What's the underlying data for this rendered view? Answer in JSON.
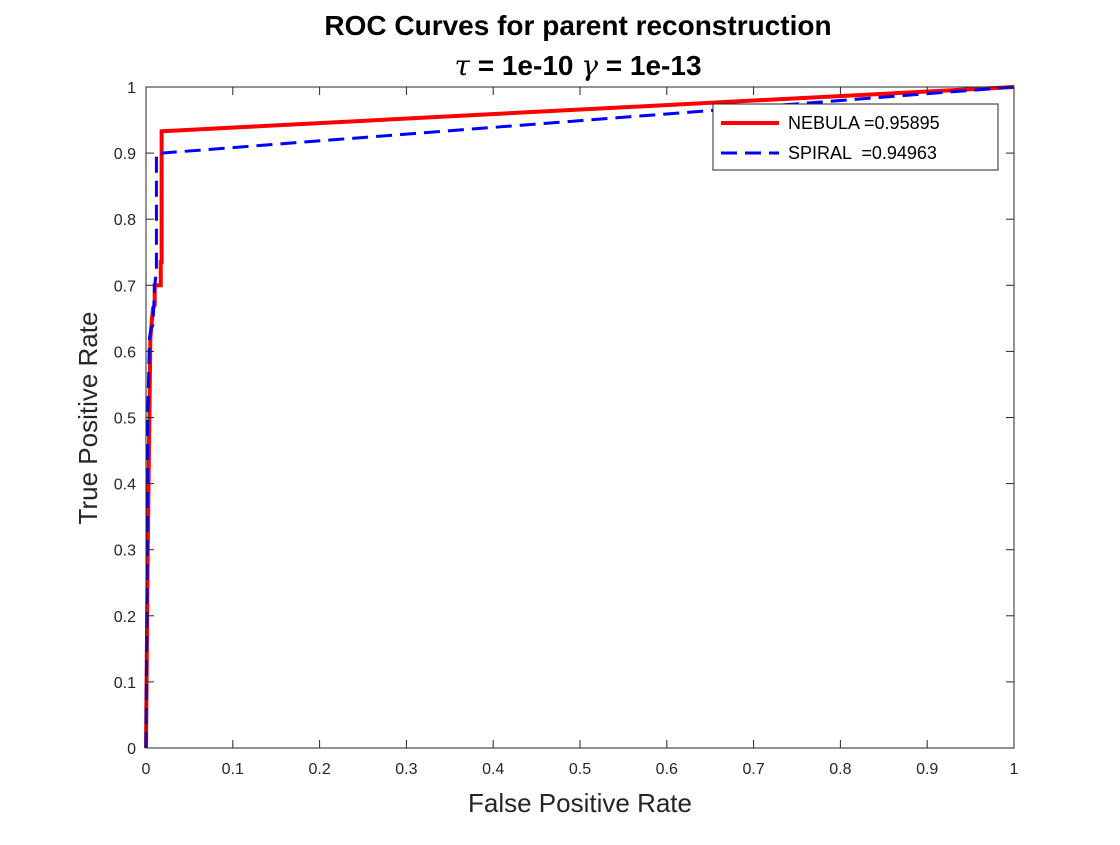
{
  "chart_data": {
    "type": "line",
    "title": "ROC Curves for parent reconstruction",
    "subtitle": {
      "tau_symbol": "τ",
      "tau_text": " = 1e-10 ",
      "gamma_symbol": "γ",
      "gamma_text": " = 1e-13"
    },
    "xlabel": "False Positive Rate",
    "ylabel": "True Positive Rate",
    "xlim": [
      0,
      1
    ],
    "ylim": [
      0,
      1
    ],
    "xticks": [
      0,
      0.1,
      0.2,
      0.3,
      0.4,
      0.5,
      0.6,
      0.7,
      0.8,
      0.9,
      1
    ],
    "yticks": [
      0,
      0.1,
      0.2,
      0.3,
      0.4,
      0.5,
      0.6,
      0.7,
      0.8,
      0.9,
      1
    ],
    "xtick_labels": [
      "0",
      "0.1",
      "0.2",
      "0.3",
      "0.4",
      "0.5",
      "0.6",
      "0.7",
      "0.8",
      "0.9",
      "1"
    ],
    "ytick_labels": [
      "0",
      "0.1",
      "0.2",
      "0.3",
      "0.4",
      "0.5",
      "0.6",
      "0.7",
      "0.8",
      "0.9",
      "1"
    ],
    "grid": false,
    "legend_position": "top-right",
    "series": [
      {
        "name": "NEBULA =0.95895",
        "color": "#ff0000",
        "style": "solid",
        "x": [
          0,
          0.002,
          0.005,
          0.008,
          0.01,
          0.01,
          0.017,
          0.017,
          0.018,
          0.018,
          1
        ],
        "y": [
          0,
          0.3,
          0.62,
          0.665,
          0.67,
          0.7,
          0.7,
          0.735,
          0.735,
          0.933,
          1
        ]
      },
      {
        "name": "SPIRAL  =0.94963",
        "color": "#0000ff",
        "style": "dashed",
        "x": [
          0,
          0.001,
          0.002,
          0.004,
          0.006,
          0.008,
          0.01,
          0.012,
          0.012,
          0.014,
          0.018,
          1
        ],
        "y": [
          0,
          0.2,
          0.5,
          0.62,
          0.635,
          0.64,
          0.7,
          0.72,
          0.9,
          0.9,
          0.9,
          1
        ]
      }
    ]
  },
  "colors": {
    "axes": "#262626",
    "background": "#ffffff"
  }
}
